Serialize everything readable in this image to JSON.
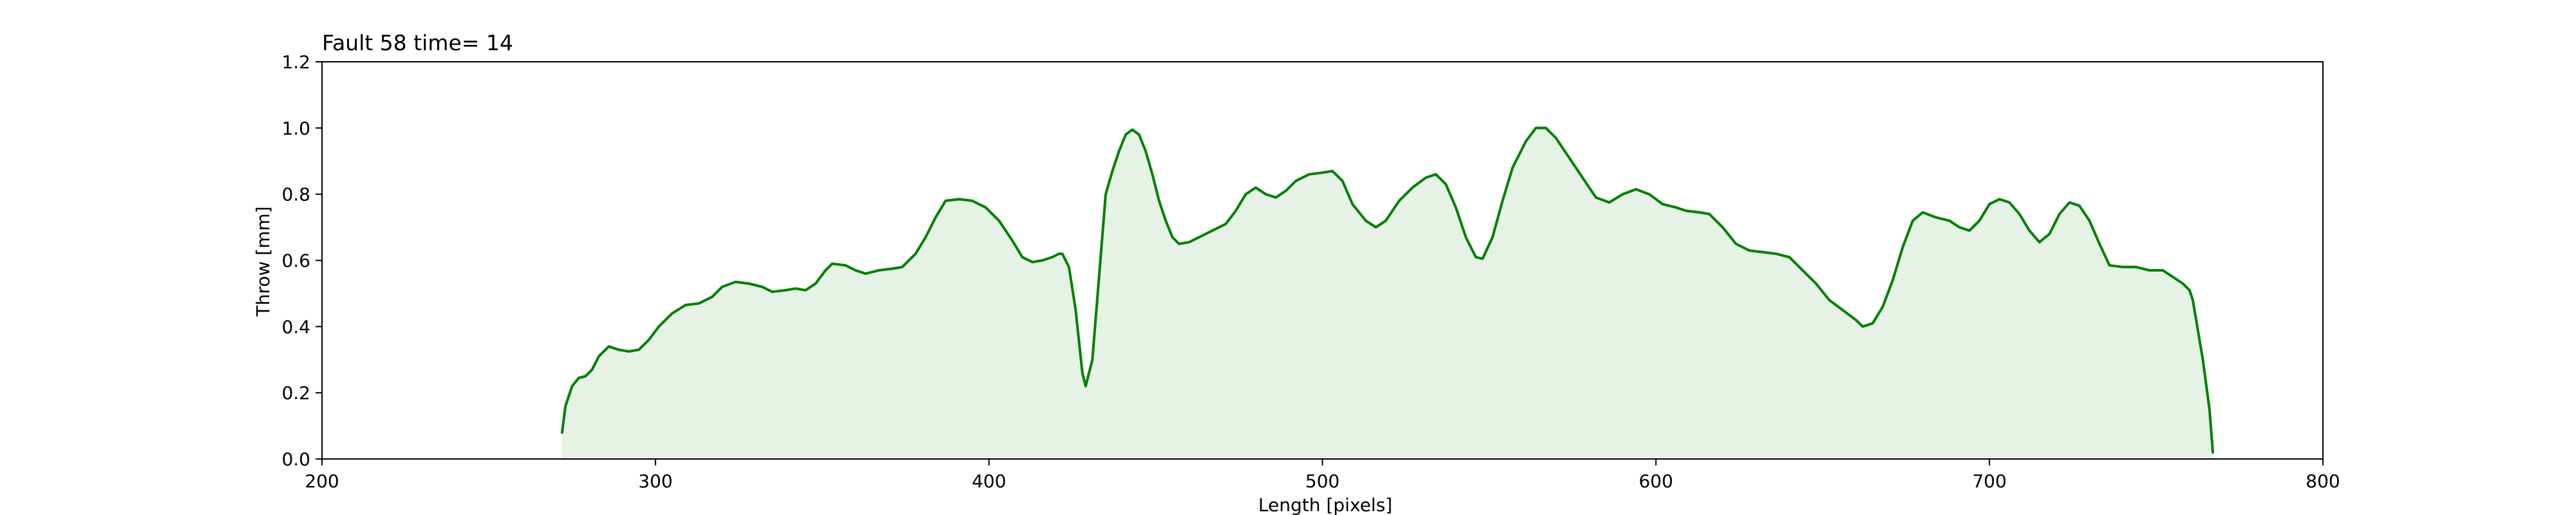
{
  "chart_data": {
    "type": "area",
    "title": "Fault 58 time= 14",
    "xlabel": "Length [pixels]",
    "ylabel": "Throw [mm]",
    "xlim": [
      200,
      800
    ],
    "ylim": [
      0,
      1.2
    ],
    "xticks": [
      "200",
      "300",
      "400",
      "500",
      "600",
      "700",
      "800"
    ],
    "yticks": [
      "0.0",
      "0.2",
      "0.4",
      "0.6",
      "0.8",
      "1.0",
      "1.2"
    ],
    "grid": false,
    "line_color": "#008000",
    "fill_color": "#e5f2e5",
    "series": [
      {
        "points": [
          [
            272,
            0.08
          ],
          [
            273,
            0.16
          ],
          [
            275,
            0.22
          ],
          [
            277,
            0.245
          ],
          [
            279,
            0.25
          ],
          [
            281,
            0.27
          ],
          [
            283,
            0.31
          ],
          [
            286,
            0.34
          ],
          [
            289,
            0.33
          ],
          [
            292,
            0.325
          ],
          [
            295,
            0.33
          ],
          [
            298,
            0.36
          ],
          [
            301,
            0.4
          ],
          [
            305,
            0.44
          ],
          [
            309,
            0.465
          ],
          [
            313,
            0.47
          ],
          [
            317,
            0.49
          ],
          [
            320,
            0.52
          ],
          [
            324,
            0.535
          ],
          [
            328,
            0.53
          ],
          [
            332,
            0.52
          ],
          [
            335,
            0.505
          ],
          [
            339,
            0.51
          ],
          [
            342,
            0.515
          ],
          [
            345,
            0.51
          ],
          [
            348,
            0.53
          ],
          [
            351,
            0.57
          ],
          [
            353,
            0.59
          ],
          [
            357,
            0.585
          ],
          [
            360,
            0.57
          ],
          [
            363,
            0.56
          ],
          [
            367,
            0.57
          ],
          [
            371,
            0.575
          ],
          [
            374,
            0.58
          ],
          [
            378,
            0.62
          ],
          [
            381,
            0.67
          ],
          [
            384,
            0.73
          ],
          [
            387,
            0.78
          ],
          [
            391,
            0.785
          ],
          [
            395,
            0.78
          ],
          [
            399,
            0.76
          ],
          [
            403,
            0.72
          ],
          [
            407,
            0.66
          ],
          [
            410,
            0.61
          ],
          [
            413,
            0.595
          ],
          [
            416,
            0.6
          ],
          [
            419,
            0.61
          ],
          [
            421,
            0.62
          ],
          [
            422,
            0.62
          ],
          [
            424,
            0.58
          ],
          [
            426,
            0.45
          ],
          [
            428,
            0.26
          ],
          [
            429,
            0.22
          ],
          [
            431,
            0.3
          ],
          [
            433,
            0.55
          ],
          [
            435,
            0.8
          ],
          [
            437,
            0.87
          ],
          [
            439,
            0.93
          ],
          [
            441,
            0.98
          ],
          [
            443,
            0.995
          ],
          [
            445,
            0.98
          ],
          [
            447,
            0.93
          ],
          [
            449,
            0.86
          ],
          [
            451,
            0.78
          ],
          [
            453,
            0.72
          ],
          [
            455,
            0.67
          ],
          [
            457,
            0.65
          ],
          [
            460,
            0.655
          ],
          [
            463,
            0.67
          ],
          [
            467,
            0.69
          ],
          [
            471,
            0.71
          ],
          [
            474,
            0.75
          ],
          [
            477,
            0.8
          ],
          [
            480,
            0.82
          ],
          [
            483,
            0.8
          ],
          [
            486,
            0.79
          ],
          [
            489,
            0.81
          ],
          [
            492,
            0.84
          ],
          [
            496,
            0.86
          ],
          [
            500,
            0.865
          ],
          [
            503,
            0.87
          ],
          [
            506,
            0.84
          ],
          [
            509,
            0.77
          ],
          [
            513,
            0.72
          ],
          [
            516,
            0.7
          ],
          [
            519,
            0.72
          ],
          [
            523,
            0.78
          ],
          [
            527,
            0.82
          ],
          [
            531,
            0.85
          ],
          [
            534,
            0.86
          ],
          [
            537,
            0.83
          ],
          [
            540,
            0.76
          ],
          [
            543,
            0.67
          ],
          [
            546,
            0.61
          ],
          [
            548,
            0.605
          ],
          [
            551,
            0.67
          ],
          [
            554,
            0.78
          ],
          [
            557,
            0.88
          ],
          [
            561,
            0.96
          ],
          [
            564,
            1.0
          ],
          [
            567,
            1.0
          ],
          [
            570,
            0.97
          ],
          [
            574,
            0.91
          ],
          [
            578,
            0.85
          ],
          [
            582,
            0.79
          ],
          [
            586,
            0.775
          ],
          [
            590,
            0.8
          ],
          [
            594,
            0.815
          ],
          [
            598,
            0.8
          ],
          [
            602,
            0.77
          ],
          [
            606,
            0.76
          ],
          [
            609,
            0.75
          ],
          [
            613,
            0.745
          ],
          [
            616,
            0.74
          ],
          [
            620,
            0.7
          ],
          [
            624,
            0.65
          ],
          [
            628,
            0.63
          ],
          [
            632,
            0.625
          ],
          [
            636,
            0.62
          ],
          [
            640,
            0.61
          ],
          [
            644,
            0.57
          ],
          [
            648,
            0.53
          ],
          [
            652,
            0.48
          ],
          [
            656,
            0.45
          ],
          [
            660,
            0.42
          ],
          [
            662,
            0.4
          ],
          [
            665,
            0.41
          ],
          [
            668,
            0.46
          ],
          [
            671,
            0.54
          ],
          [
            674,
            0.64
          ],
          [
            677,
            0.72
          ],
          [
            680,
            0.745
          ],
          [
            684,
            0.73
          ],
          [
            688,
            0.72
          ],
          [
            691,
            0.7
          ],
          [
            694,
            0.69
          ],
          [
            697,
            0.72
          ],
          [
            700,
            0.77
          ],
          [
            703,
            0.785
          ],
          [
            706,
            0.775
          ],
          [
            709,
            0.74
          ],
          [
            712,
            0.69
          ],
          [
            715,
            0.655
          ],
          [
            718,
            0.68
          ],
          [
            721,
            0.74
          ],
          [
            724,
            0.775
          ],
          [
            727,
            0.765
          ],
          [
            730,
            0.72
          ],
          [
            733,
            0.65
          ],
          [
            736,
            0.585
          ],
          [
            740,
            0.58
          ],
          [
            744,
            0.58
          ],
          [
            748,
            0.57
          ],
          [
            752,
            0.57
          ],
          [
            755,
            0.55
          ],
          [
            758,
            0.53
          ],
          [
            760,
            0.51
          ],
          [
            761,
            0.48
          ],
          [
            762,
            0.42
          ],
          [
            764,
            0.3
          ],
          [
            766,
            0.15
          ],
          [
            767,
            0.02
          ]
        ]
      }
    ]
  }
}
